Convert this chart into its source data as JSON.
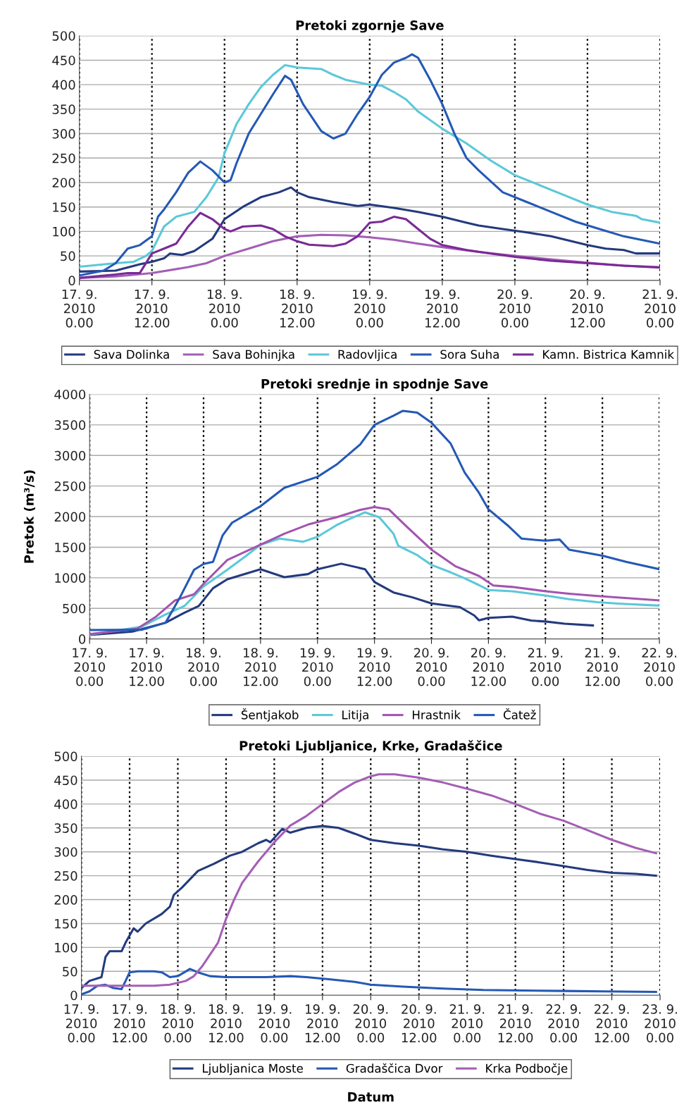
{
  "chart_data": [
    {
      "type": "line",
      "title": "Pretoki zgornje Save",
      "xlim": [
        "2010-09-17T00:00",
        "2010-09-21T00:00"
      ],
      "ylim": [
        0,
        500
      ],
      "yticks": [
        0,
        50,
        100,
        150,
        200,
        250,
        300,
        350,
        400,
        450,
        500
      ],
      "xticks": [
        {
          "value": "2010-09-17T00:00",
          "label": "17. 9.\n2010\n0.00"
        },
        {
          "value": "2010-09-17T12:00",
          "label": "17. 9.\n2010\n12.00"
        },
        {
          "value": "2010-09-18T00:00",
          "label": "18. 9.\n2010\n0.00"
        },
        {
          "value": "2010-09-18T12:00",
          "label": "18. 9.\n2010\n12.00"
        },
        {
          "value": "2010-09-19T00:00",
          "label": "19. 9.\n2010\n0.00"
        },
        {
          "value": "2010-09-19T12:00",
          "label": "19. 9.\n2010\n12.00"
        },
        {
          "value": "2010-09-20T00:00",
          "label": "20. 9.\n2010\n0.00"
        },
        {
          "value": "2010-09-20T12:00",
          "label": "20. 9.\n2010\n12.00"
        },
        {
          "value": "2010-09-21T00:00",
          "label": "21. 9.\n2010\n0.00"
        }
      ],
      "grid": true,
      "legend": "bottom",
      "marker": "none",
      "line_style": "solid",
      "series": [
        {
          "name": "Sava Dolinka",
          "color": "#233a7e",
          "x": [
            "2010-09-17T00:00",
            "2010-09-17T06:00",
            "2010-09-17T10:00",
            "2010-09-17T12:00",
            "2010-09-17T14:00",
            "2010-09-17T15:00",
            "2010-09-17T17:00",
            "2010-09-17T19:00",
            "2010-09-17T22:00",
            "2010-09-18T00:00",
            "2010-09-18T03:00",
            "2010-09-18T06:00",
            "2010-09-18T09:00",
            "2010-09-18T11:00",
            "2010-09-18T12:00",
            "2010-09-18T14:00",
            "2010-09-18T18:00",
            "2010-09-18T22:00",
            "2010-09-19T00:00",
            "2010-09-19T04:00",
            "2010-09-19T08:00",
            "2010-09-19T12:00",
            "2010-09-19T16:00",
            "2010-09-19T18:00",
            "2010-09-19T22:00",
            "2010-09-20T02:00",
            "2010-09-20T06:00",
            "2010-09-20T12:00",
            "2010-09-20T15:00",
            "2010-09-20T18:00",
            "2010-09-20T20:00",
            "2010-09-21T00:00"
          ],
          "values": [
            18,
            20,
            33,
            38,
            45,
            55,
            52,
            60,
            85,
            125,
            150,
            170,
            180,
            190,
            180,
            170,
            160,
            152,
            155,
            148,
            140,
            130,
            118,
            112,
            105,
            98,
            90,
            72,
            65,
            62,
            55,
            55
          ]
        },
        {
          "name": "Sava Bohinjka",
          "color": "#a45fb5",
          "x": [
            "2010-09-17T00:00",
            "2010-09-17T06:00",
            "2010-09-17T12:00",
            "2010-09-17T18:00",
            "2010-09-17T21:00",
            "2010-09-18T00:00",
            "2010-09-18T04:00",
            "2010-09-18T08:00",
            "2010-09-18T12:00",
            "2010-09-18T16:00",
            "2010-09-18T20:00",
            "2010-09-19T00:00",
            "2010-09-19T04:00",
            "2010-09-19T08:00",
            "2010-09-19T12:00",
            "2010-09-19T18:00",
            "2010-09-20T00:00",
            "2010-09-20T06:00",
            "2010-09-20T12:00",
            "2010-09-20T18:00",
            "2010-09-21T00:00"
          ],
          "values": [
            5,
            8,
            15,
            27,
            35,
            50,
            65,
            80,
            90,
            93,
            92,
            88,
            83,
            75,
            68,
            58,
            50,
            43,
            36,
            30,
            27
          ]
        },
        {
          "name": "Radovljica",
          "color": "#5bc8d8",
          "x": [
            "2010-09-17T00:00",
            "2010-09-17T06:00",
            "2010-09-17T09:00",
            "2010-09-17T11:00",
            "2010-09-17T12:00",
            "2010-09-17T14:00",
            "2010-09-17T16:00",
            "2010-09-17T19:00",
            "2010-09-17T21:00",
            "2010-09-17T23:00",
            "2010-09-18T00:00",
            "2010-09-18T02:00",
            "2010-09-18T04:00",
            "2010-09-18T06:00",
            "2010-09-18T08:00",
            "2010-09-18T10:00",
            "2010-09-18T12:00",
            "2010-09-18T16:00",
            "2010-09-18T18:00",
            "2010-09-18T20:00",
            "2010-09-18T22:00",
            "2010-09-19T00:00",
            "2010-09-19T02:00",
            "2010-09-19T04:00",
            "2010-09-19T06:00",
            "2010-09-19T08:00",
            "2010-09-19T12:00",
            "2010-09-19T16:00",
            "2010-09-19T20:00",
            "2010-09-20T00:00",
            "2010-09-20T04:00",
            "2010-09-20T08:00",
            "2010-09-20T12:00",
            "2010-09-20T16:00",
            "2010-09-20T20:00",
            "2010-09-20T21:00",
            "2010-09-21T00:00"
          ],
          "values": [
            28,
            35,
            38,
            50,
            60,
            110,
            130,
            140,
            170,
            210,
            260,
            320,
            360,
            395,
            420,
            440,
            435,
            432,
            420,
            410,
            405,
            400,
            398,
            385,
            370,
            345,
            310,
            280,
            245,
            215,
            195,
            175,
            155,
            140,
            132,
            125,
            118
          ]
        },
        {
          "name": "Sora Suha",
          "color": "#2459b5",
          "x": [
            "2010-09-17T00:00",
            "2010-09-17T04:00",
            "2010-09-17T06:00",
            "2010-09-17T08:00",
            "2010-09-17T10:00",
            "2010-09-17T12:00",
            "2010-09-17T13:00",
            "2010-09-17T14:00",
            "2010-09-17T16:00",
            "2010-09-17T18:00",
            "2010-09-17T20:00",
            "2010-09-17T22:00",
            "2010-09-18T00:00",
            "2010-09-18T01:00",
            "2010-09-18T02:00",
            "2010-09-18T04:00",
            "2010-09-18T06:00",
            "2010-09-18T08:00",
            "2010-09-18T10:00",
            "2010-09-18T11:00",
            "2010-09-18T13:00",
            "2010-09-18T16:00",
            "2010-09-18T18:00",
            "2010-09-18T20:00",
            "2010-09-18T22:00",
            "2010-09-19T00:00",
            "2010-09-19T02:00",
            "2010-09-19T04:00",
            "2010-09-19T06:00",
            "2010-09-19T07:00",
            "2010-09-19T08:00",
            "2010-09-19T10:00",
            "2010-09-19T12:00",
            "2010-09-19T14:00",
            "2010-09-19T16:00",
            "2010-09-19T18:00",
            "2010-09-19T22:00",
            "2010-09-20T02:00",
            "2010-09-20T06:00",
            "2010-09-20T10:00",
            "2010-09-20T14:00",
            "2010-09-20T18:00",
            "2010-09-20T22:00",
            "2010-09-21T00:00"
          ],
          "values": [
            10,
            20,
            35,
            65,
            72,
            90,
            130,
            145,
            180,
            220,
            243,
            225,
            200,
            205,
            240,
            300,
            340,
            380,
            418,
            410,
            360,
            305,
            290,
            300,
            340,
            375,
            420,
            445,
            455,
            462,
            455,
            410,
            360,
            300,
            250,
            225,
            180,
            160,
            140,
            120,
            105,
            90,
            80,
            75
          ]
        },
        {
          "name": "Kamn. Bistrica Kamnik",
          "color": "#7a2a96",
          "x": [
            "2010-09-17T00:00",
            "2010-09-17T06:00",
            "2010-09-17T08:00",
            "2010-09-17T10:00",
            "2010-09-17T12:00",
            "2010-09-17T14:00",
            "2010-09-17T16:00",
            "2010-09-17T18:00",
            "2010-09-17T20:00",
            "2010-09-17T22:00",
            "2010-09-18T00:00",
            "2010-09-18T01:00",
            "2010-09-18T03:00",
            "2010-09-18T06:00",
            "2010-09-18T08:00",
            "2010-09-18T10:00",
            "2010-09-18T12:00",
            "2010-09-18T14:00",
            "2010-09-18T18:00",
            "2010-09-18T20:00",
            "2010-09-18T22:00",
            "2010-09-19T00:00",
            "2010-09-19T02:00",
            "2010-09-19T04:00",
            "2010-09-19T06:00",
            "2010-09-19T08:00",
            "2010-09-19T10:00",
            "2010-09-19T12:00",
            "2010-09-19T16:00",
            "2010-09-19T20:00",
            "2010-09-20T00:00",
            "2010-09-20T06:00",
            "2010-09-20T12:00",
            "2010-09-20T18:00",
            "2010-09-21T00:00"
          ],
          "values": [
            5,
            12,
            15,
            15,
            55,
            65,
            75,
            110,
            138,
            125,
            105,
            100,
            110,
            112,
            105,
            90,
            80,
            73,
            70,
            75,
            90,
            118,
            120,
            130,
            125,
            105,
            85,
            72,
            62,
            55,
            48,
            40,
            35,
            30,
            26
          ]
        }
      ]
    },
    {
      "type": "line",
      "title": "Pretoki srednje in spodnje Save",
      "ylabel": "Pretok (m³/s)",
      "xlim": [
        "2010-09-17T00:00",
        "2010-09-22T00:00"
      ],
      "ylim": [
        0,
        4000
      ],
      "yticks": [
        0,
        500,
        1000,
        1500,
        2000,
        2500,
        3000,
        3500,
        4000
      ],
      "xticks": [
        {
          "value": "2010-09-17T00:00",
          "label": "17. 9.\n2010\n0.00"
        },
        {
          "value": "2010-09-17T12:00",
          "label": "17. 9.\n2010\n12.00"
        },
        {
          "value": "2010-09-18T00:00",
          "label": "18. 9.\n2010\n0.00"
        },
        {
          "value": "2010-09-18T12:00",
          "label": "18. 9.\n2010\n12.00"
        },
        {
          "value": "2010-09-19T00:00",
          "label": "19. 9.\n2010\n0.00"
        },
        {
          "value": "2010-09-19T12:00",
          "label": "19. 9.\n2010\n12.00"
        },
        {
          "value": "2010-09-20T00:00",
          "label": "20. 9.\n2010\n0.00"
        },
        {
          "value": "2010-09-20T12:00",
          "label": "20. 9.\n2010\n12.00"
        },
        {
          "value": "2010-09-21T00:00",
          "label": "21. 9.\n2010\n0.00"
        },
        {
          "value": "2010-09-21T12:00",
          "label": "21. 9.\n2010\n12.00"
        },
        {
          "value": "2010-09-22T00:00",
          "label": "22. 9.\n2010\n0.00"
        }
      ],
      "grid": true,
      "legend": "bottom",
      "marker": "none",
      "line_style": "solid",
      "series": [
        {
          "name": "Šentjakob",
          "color": "#233a7e",
          "x": [
            "2010-09-17T00:00",
            "2010-09-17T09:00",
            "2010-09-17T16:00",
            "2010-09-17T20:00",
            "2010-09-17T23:00",
            "2010-09-18T02:00",
            "2010-09-18T05:00",
            "2010-09-18T12:00",
            "2010-09-18T17:00",
            "2010-09-18T22:00",
            "2010-09-19T00:00",
            "2010-09-19T05:00",
            "2010-09-19T10:00",
            "2010-09-19T12:00",
            "2010-09-19T16:00",
            "2010-09-19T20:00",
            "2010-09-20T00:00",
            "2010-09-20T06:00",
            "2010-09-20T09:00",
            "2010-09-20T10:00",
            "2010-09-20T12:00",
            "2010-09-20T17:00",
            "2010-09-20T21:00",
            "2010-09-21T00:00",
            "2010-09-21T04:00",
            "2010-09-21T10:00"
          ],
          "values": [
            66,
            120,
            265,
            430,
            540,
            830,
            975,
            1140,
            1010,
            1060,
            1140,
            1230,
            1140,
            930,
            760,
            680,
            580,
            520,
            385,
            305,
            345,
            365,
            300,
            285,
            250,
            220
          ]
        },
        {
          "name": "Litija",
          "color": "#5bc8d8",
          "x": [
            "2010-09-17T00:00",
            "2010-09-17T11:00",
            "2010-09-17T16:00",
            "2010-09-17T20:00",
            "2010-09-18T00:00",
            "2010-09-18T05:00",
            "2010-09-18T09:00",
            "2010-09-18T12:00",
            "2010-09-18T16:00",
            "2010-09-18T21:00",
            "2010-09-19T00:00",
            "2010-09-19T04:00",
            "2010-09-19T07:00",
            "2010-09-19T10:00",
            "2010-09-19T13:00",
            "2010-09-19T16:00",
            "2010-09-19T17:00",
            "2010-09-19T21:00",
            "2010-09-20T00:00",
            "2010-09-20T04:00",
            "2010-09-20T07:00",
            "2010-09-20T10:00",
            "2010-09-20T12:00",
            "2010-09-20T17:00",
            "2010-09-21T00:00",
            "2010-09-21T05:00",
            "2010-09-21T11:00",
            "2010-09-21T16:00",
            "2010-09-22T00:00"
          ],
          "values": [
            70,
            200,
            400,
            540,
            860,
            1130,
            1360,
            1540,
            1640,
            1590,
            1670,
            1860,
            1970,
            2070,
            1990,
            1720,
            1525,
            1370,
            1210,
            1090,
            990,
            880,
            800,
            780,
            710,
            650,
            600,
            575,
            545
          ]
        },
        {
          "name": "Hrastnik",
          "color": "#a354b0",
          "x": [
            "2010-09-17T00:00",
            "2010-09-17T10:00",
            "2010-09-17T14:00",
            "2010-09-17T18:00",
            "2010-09-17T22:00",
            "2010-09-18T00:00",
            "2010-09-18T05:00",
            "2010-09-18T12:00",
            "2010-09-18T17:00",
            "2010-09-18T22:00",
            "2010-09-19T04:00",
            "2010-09-19T09:00",
            "2010-09-19T12:00",
            "2010-09-19T15:00",
            "2010-09-19T19:00",
            "2010-09-20T00:00",
            "2010-09-20T05:00",
            "2010-09-20T10:00",
            "2010-09-20T13:00",
            "2010-09-20T17:00",
            "2010-09-21T00:00",
            "2010-09-21T05:00",
            "2010-09-21T12:00",
            "2010-09-22T00:00"
          ],
          "values": [
            80,
            165,
            365,
            630,
            730,
            900,
            1290,
            1540,
            1720,
            1870,
            1990,
            2110,
            2155,
            2120,
            1820,
            1460,
            1190,
            1030,
            875,
            850,
            780,
            740,
            695,
            630
          ]
        },
        {
          "name": "Čatež",
          "color": "#2459b5",
          "x": [
            "2010-09-17T00:00",
            "2010-09-17T11:00",
            "2010-09-17T16:00",
            "2010-09-17T19:00",
            "2010-09-17T22:00",
            "2010-09-18T00:00",
            "2010-09-18T02:00",
            "2010-09-18T04:00",
            "2010-09-18T06:00",
            "2010-09-18T12:00",
            "2010-09-18T17:00",
            "2010-09-19T00:00",
            "2010-09-19T04:00",
            "2010-09-19T09:00",
            "2010-09-19T12:00",
            "2010-09-19T16:00",
            "2010-09-19T18:00",
            "2010-09-19T21:00",
            "2010-09-20T00:00",
            "2010-09-20T04:00",
            "2010-09-20T07:00",
            "2010-09-20T10:00",
            "2010-09-20T12:00",
            "2010-09-20T16:00",
            "2010-09-20T19:00",
            "2010-09-21T00:00",
            "2010-09-21T03:00",
            "2010-09-21T05:00",
            "2010-09-21T12:00",
            "2010-09-21T17:00",
            "2010-09-22T00:00"
          ],
          "values": [
            145,
            150,
            265,
            675,
            1130,
            1225,
            1260,
            1690,
            1900,
            2170,
            2470,
            2650,
            2850,
            3180,
            3500,
            3650,
            3730,
            3700,
            3535,
            3200,
            2720,
            2390,
            2120,
            1860,
            1640,
            1605,
            1625,
            1460,
            1360,
            1260,
            1140
          ]
        }
      ]
    },
    {
      "type": "line",
      "title": "Pretoki Ljubljanice, Krke, Gradaščice",
      "xlabel": "Datum",
      "xlim": [
        "2010-09-17T00:00",
        "2010-09-23T00:00"
      ],
      "ylim": [
        0,
        500
      ],
      "yticks": [
        0,
        50,
        100,
        150,
        200,
        250,
        300,
        350,
        400,
        450,
        500
      ],
      "xticks": [
        {
          "value": "2010-09-17T00:00",
          "label": "17. 9.\n2010\n0.00"
        },
        {
          "value": "2010-09-17T12:00",
          "label": "17. 9.\n2010\n12.00"
        },
        {
          "value": "2010-09-18T00:00",
          "label": "18. 9.\n2010\n0.00"
        },
        {
          "value": "2010-09-18T12:00",
          "label": "18. 9.\n2010\n12.00"
        },
        {
          "value": "2010-09-19T00:00",
          "label": "19. 9.\n2010\n0.00"
        },
        {
          "value": "2010-09-19T12:00",
          "label": "19. 9.\n2010\n12.00"
        },
        {
          "value": "2010-09-20T00:00",
          "label": "20. 9.\n2010\n0.00"
        },
        {
          "value": "2010-09-20T12:00",
          "label": "20. 9.\n2010\n12.00"
        },
        {
          "value": "2010-09-21T00:00",
          "label": "21. 9.\n2010\n0.00"
        },
        {
          "value": "2010-09-21T12:00",
          "label": "21. 9.\n2010\n12.00"
        },
        {
          "value": "2010-09-22T00:00",
          "label": "22. 9.\n2010\n0.00"
        },
        {
          "value": "2010-09-22T12:00",
          "label": "22. 9.\n2010\n12.00"
        },
        {
          "value": "2010-09-23T00:00",
          "label": "23. 9.\n2010\n0.00"
        }
      ],
      "grid": true,
      "legend": "bottom",
      "marker": "none",
      "line_style": "solid",
      "series": [
        {
          "name": "Ljubljanica Moste",
          "color": "#233a7e",
          "x": [
            "2010-09-17T00:00",
            "2010-09-17T02:00",
            "2010-09-17T05:00",
            "2010-09-17T06:00",
            "2010-09-17T07:00",
            "2010-09-17T10:00",
            "2010-09-17T11:00",
            "2010-09-17T13:00",
            "2010-09-17T14:00",
            "2010-09-17T16:00",
            "2010-09-17T20:00",
            "2010-09-17T22:00",
            "2010-09-17T23:00",
            "2010-09-18T01:00",
            "2010-09-18T05:00",
            "2010-09-18T09:00",
            "2010-09-18T13:00",
            "2010-09-18T16:00",
            "2010-09-18T20:00",
            "2010-09-18T22:00",
            "2010-09-18T23:00",
            "2010-09-19T02:00",
            "2010-09-19T04:00",
            "2010-09-19T08:00",
            "2010-09-19T12:00",
            "2010-09-19T16:00",
            "2010-09-19T20:00",
            "2010-09-20T00:00",
            "2010-09-20T06:00",
            "2010-09-20T12:00",
            "2010-09-20T18:00",
            "2010-09-21T00:00",
            "2010-09-21T06:00",
            "2010-09-21T12:00",
            "2010-09-21T18:00",
            "2010-09-22T00:00",
            "2010-09-22T06:00",
            "2010-09-22T12:00",
            "2010-09-22T18:00",
            "2010-09-22T23:00"
          ],
          "values": [
            15,
            30,
            38,
            80,
            92,
            92,
            110,
            140,
            133,
            150,
            170,
            185,
            210,
            225,
            260,
            275,
            292,
            300,
            318,
            325,
            320,
            348,
            340,
            350,
            354,
            350,
            338,
            325,
            318,
            313,
            305,
            300,
            292,
            285,
            278,
            270,
            262,
            256,
            254,
            250
          ]
        },
        {
          "name": "Gradaščica Dvor",
          "color": "#2459b5",
          "x": [
            "2010-09-17T00:00",
            "2010-09-17T02:00",
            "2010-09-17T04:00",
            "2010-09-17T06:00",
            "2010-09-17T08:00",
            "2010-09-17T10:00",
            "2010-09-17T11:00",
            "2010-09-17T12:00",
            "2010-09-17T14:00",
            "2010-09-17T18:00",
            "2010-09-17T20:00",
            "2010-09-17T22:00",
            "2010-09-18T00:00",
            "2010-09-18T02:00",
            "2010-09-18T03:00",
            "2010-09-18T05:00",
            "2010-09-18T08:00",
            "2010-09-18T12:00",
            "2010-09-18T16:00",
            "2010-09-18T22:00",
            "2010-09-19T04:00",
            "2010-09-19T08:00",
            "2010-09-19T14:00",
            "2010-09-19T20:00",
            "2010-09-20T00:00",
            "2010-09-20T08:00",
            "2010-09-20T18:00",
            "2010-09-21T04:00",
            "2010-09-21T14:00",
            "2010-09-22T00:00",
            "2010-09-22T10:00",
            "2010-09-22T23:00"
          ],
          "values": [
            2,
            8,
            20,
            22,
            15,
            13,
            30,
            48,
            50,
            50,
            48,
            38,
            40,
            50,
            55,
            48,
            40,
            38,
            38,
            38,
            40,
            38,
            33,
            28,
            22,
            18,
            14,
            11,
            10,
            9,
            8,
            7
          ]
        },
        {
          "name": "Krka Podbočje",
          "color": "#a45fb5",
          "x": [
            "2010-09-17T00:00",
            "2010-09-17T12:00",
            "2010-09-17T18:00",
            "2010-09-17T22:00",
            "2010-09-18T02:00",
            "2010-09-18T04:00",
            "2010-09-18T06:00",
            "2010-09-18T08:00",
            "2010-09-18T10:00",
            "2010-09-18T12:00",
            "2010-09-18T14:00",
            "2010-09-18T16:00",
            "2010-09-18T20:00",
            "2010-09-19T00:00",
            "2010-09-19T04:00",
            "2010-09-19T08:00",
            "2010-09-19T12:00",
            "2010-09-19T16:00",
            "2010-09-19T20:00",
            "2010-09-20T00:00",
            "2010-09-20T02:00",
            "2010-09-20T06:00",
            "2010-09-20T12:00",
            "2010-09-20T18:00",
            "2010-09-21T00:00",
            "2010-09-21T06:00",
            "2010-09-21T12:00",
            "2010-09-21T18:00",
            "2010-09-22T00:00",
            "2010-09-22T06:00",
            "2010-09-22T12:00",
            "2010-09-22T18:00",
            "2010-09-22T23:00"
          ],
          "values": [
            20,
            20,
            20,
            22,
            30,
            40,
            60,
            85,
            110,
            160,
            200,
            235,
            280,
            320,
            355,
            375,
            400,
            425,
            445,
            458,
            462,
            462,
            455,
            445,
            432,
            418,
            400,
            380,
            365,
            345,
            325,
            308,
            297
          ]
        }
      ]
    }
  ]
}
